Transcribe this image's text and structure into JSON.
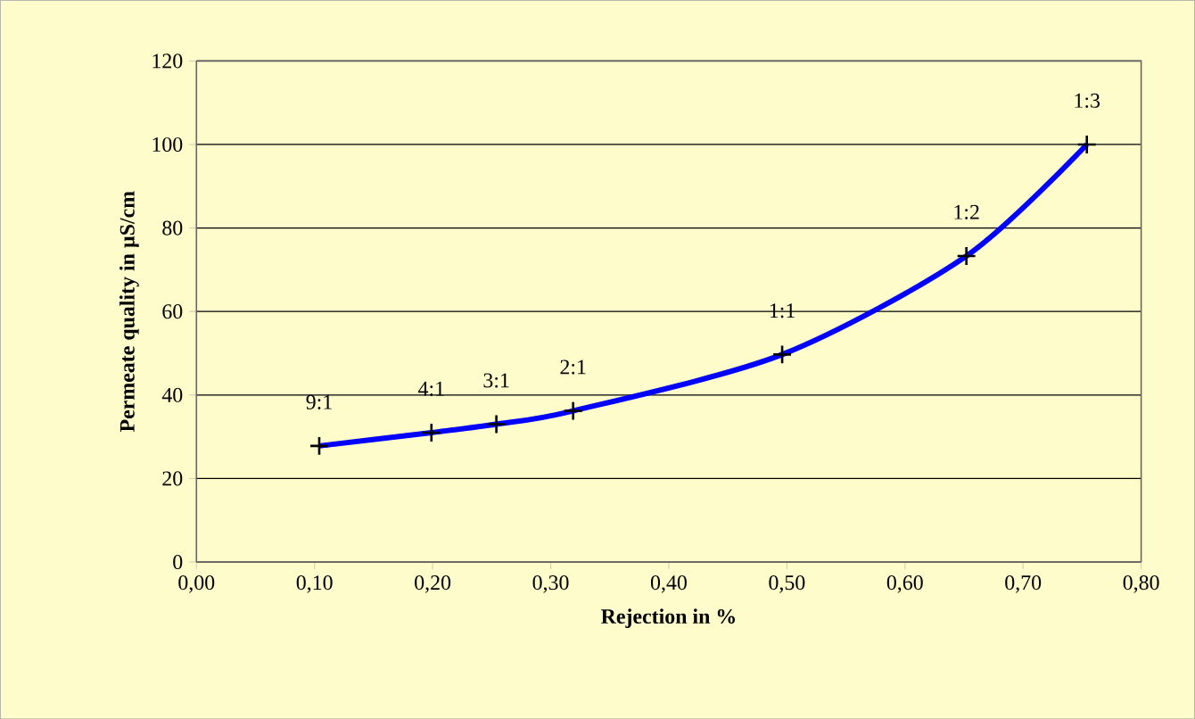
{
  "chart_data": {
    "type": "line",
    "xlabel": "Rejection in %",
    "ylabel": "Permeate quality in µS/cm",
    "series": [
      {
        "color": "#0000ff",
        "x": [
          0.104,
          0.199,
          0.254,
          0.319,
          0.496,
          0.652,
          0.754
        ],
        "values": [
          27.8,
          31,
          33,
          36.2,
          49.7,
          73.3,
          100
        ]
      }
    ],
    "annotations": [
      {
        "text": "9:1",
        "x": 0.104,
        "y": 27.8
      },
      {
        "text": "4:1",
        "x": 0.199,
        "y": 31
      },
      {
        "text": "3:1",
        "x": 0.254,
        "y": 33
      },
      {
        "text": "2:1",
        "x": 0.319,
        "y": 36.2
      },
      {
        "text": "1:1",
        "x": 0.496,
        "y": 49.7
      },
      {
        "text": "1:2",
        "x": 0.652,
        "y": 73.3
      },
      {
        "text": "1:3",
        "x": 0.754,
        "y": 100
      }
    ],
    "xlim": [
      0,
      0.8
    ],
    "xticks": [
      {
        "value": 0,
        "label": "0,00"
      },
      {
        "value": 0.1,
        "label": "0,10"
      },
      {
        "value": 0.2,
        "label": "0,20"
      },
      {
        "value": 0.3,
        "label": "0,30"
      },
      {
        "value": 0.4,
        "label": "0,40"
      },
      {
        "value": 0.5,
        "label": "0,50"
      },
      {
        "value": 0.6,
        "label": "0,60"
      },
      {
        "value": 0.7,
        "label": "0,70"
      },
      {
        "value": 0.8,
        "label": "0,80"
      }
    ],
    "ylim": [
      0,
      120
    ],
    "yticks": [
      0,
      20,
      40,
      60,
      80,
      100,
      120
    ],
    "grid": "y",
    "marker": "cross",
    "line_style": "solid"
  }
}
